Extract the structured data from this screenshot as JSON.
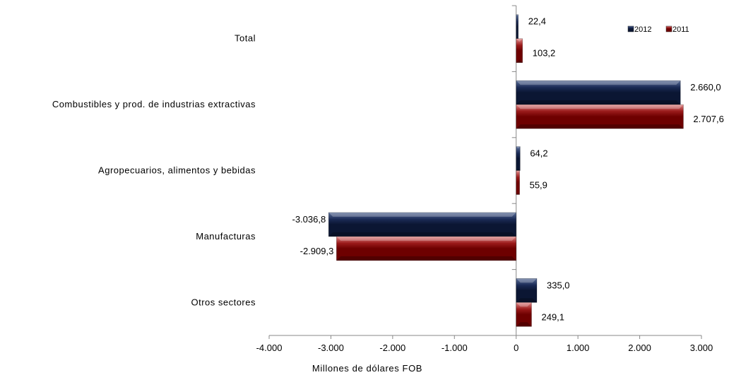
{
  "chart_data": {
    "type": "bar",
    "orientation": "horizontal",
    "categories": [
      "Total",
      "Combustibles y prod. de industrias extractivas",
      "Agropecuarios, alimentos y bebidas",
      "Manufacturas",
      "Otros sectores"
    ],
    "series": [
      {
        "name": "2012",
        "color": "#0d1b3e",
        "values": [
          22.4,
          2660.0,
          64.2,
          -3036.8,
          335.0
        ],
        "labels": [
          "22,4",
          "2.660,0",
          "64,2",
          "-3.036,8",
          "335,0"
        ]
      },
      {
        "name": "2011",
        "color": "#7a0000",
        "values": [
          103.2,
          2707.6,
          55.9,
          -2909.3,
          249.1
        ],
        "labels": [
          "103,2",
          "2.707,6",
          "55,9",
          "-2.909,3",
          "249,1"
        ]
      }
    ],
    "xlabel": "Millones de dólares FOB",
    "xlim": [
      -4000,
      3000
    ],
    "xticks": [
      -4000,
      -3000,
      -2000,
      -1000,
      0,
      1000,
      2000,
      3000
    ],
    "xtick_labels": [
      "-4.000",
      "-3.000",
      "-2.000",
      "-1.000",
      "0",
      "1.000",
      "2.000",
      "3.000"
    ],
    "legend_position": "top-right",
    "grid": false
  }
}
